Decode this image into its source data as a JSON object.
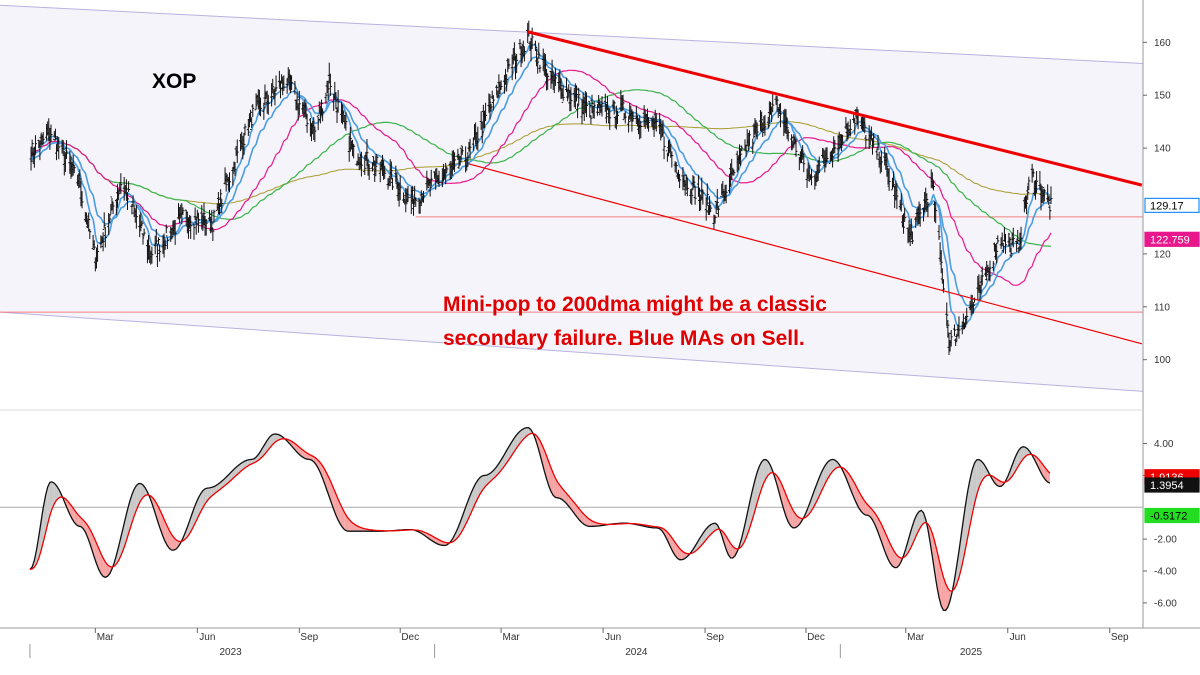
{
  "chart_data": [
    {
      "type": "candlestick",
      "ticker": "XOP",
      "annotation_lines": [
        "Mini-pop to 200dma might be a classic",
        "secondary failure. Blue MAs on Sell."
      ],
      "y_ticks": [
        100,
        110,
        120,
        140,
        150,
        160
      ],
      "ylim": [
        92,
        168
      ],
      "x_months": [
        {
          "label": "Mar",
          "date": "2023-03"
        },
        {
          "label": "Jun",
          "date": "2023-06"
        },
        {
          "label": "Sep",
          "date": "2023-09"
        },
        {
          "label": "Dec",
          "date": "2023-12"
        },
        {
          "label": "Mar",
          "date": "2024-03"
        },
        {
          "label": "Jun",
          "date": "2024-06"
        },
        {
          "label": "Sep",
          "date": "2024-09"
        },
        {
          "label": "Dec",
          "date": "2024-12"
        },
        {
          "label": "Mar",
          "date": "2025-03"
        },
        {
          "label": "Jun",
          "date": "2025-06"
        },
        {
          "label": "Sep",
          "date": "2025-09"
        }
      ],
      "x_years": [
        "2023",
        "2024",
        "2025"
      ],
      "price_path": [
        {
          "date": "2023-01-01",
          "value": 139
        },
        {
          "date": "2023-01-20",
          "value": 143
        },
        {
          "date": "2023-02-15",
          "value": 133
        },
        {
          "date": "2023-03-01",
          "value": 119
        },
        {
          "date": "2023-03-25",
          "value": 134
        },
        {
          "date": "2023-04-20",
          "value": 120
        },
        {
          "date": "2023-05-20",
          "value": 127
        },
        {
          "date": "2023-06-15",
          "value": 126
        },
        {
          "date": "2023-07-20",
          "value": 146
        },
        {
          "date": "2023-08-20",
          "value": 153
        },
        {
          "date": "2023-09-15",
          "value": 143
        },
        {
          "date": "2023-09-28",
          "value": 153
        },
        {
          "date": "2023-10-20",
          "value": 139
        },
        {
          "date": "2023-11-15",
          "value": 136
        },
        {
          "date": "2023-12-10",
          "value": 130
        },
        {
          "date": "2024-01-05",
          "value": 134
        },
        {
          "date": "2024-02-01",
          "value": 139
        },
        {
          "date": "2024-03-01",
          "value": 152
        },
        {
          "date": "2024-03-25",
          "value": 161
        },
        {
          "date": "2024-04-15",
          "value": 153
        },
        {
          "date": "2024-05-20",
          "value": 147
        },
        {
          "date": "2024-06-20",
          "value": 147
        },
        {
          "date": "2024-07-20",
          "value": 144
        },
        {
          "date": "2024-08-10",
          "value": 135
        },
        {
          "date": "2024-09-10",
          "value": 128
        },
        {
          "date": "2024-10-10",
          "value": 141
        },
        {
          "date": "2024-11-05",
          "value": 148
        },
        {
          "date": "2024-12-05",
          "value": 134
        },
        {
          "date": "2025-01-15",
          "value": 146
        },
        {
          "date": "2025-02-10",
          "value": 137
        },
        {
          "date": "2025-03-05",
          "value": 123
        },
        {
          "date": "2025-03-25",
          "value": 133
        },
        {
          "date": "2025-04-10",
          "value": 103
        },
        {
          "date": "2025-05-05",
          "value": 112
        },
        {
          "date": "2025-05-25",
          "value": 123
        },
        {
          "date": "2025-06-10",
          "value": 121
        },
        {
          "date": "2025-06-22",
          "value": 135
        },
        {
          "date": "2025-07-10",
          "value": 129
        }
      ],
      "horizontal_lines": [
        127,
        109
      ],
      "trendlines": [
        {
          "name": "downtrend",
          "color": "#ee0000",
          "from": {
            "date": "2024-03-25",
            "value": 162
          },
          "to": {
            "date": "2025-09-30",
            "value": 133
          }
        },
        {
          "name": "lower",
          "color": "#ee0000",
          "from": {
            "date": "2024-02-01",
            "value": 137
          },
          "to": {
            "date": "2025-09-30",
            "value": 103
          }
        }
      ],
      "channel": {
        "upper_from": 167,
        "upper_to": 156,
        "lower_from": 109,
        "lower_to": 94
      },
      "last_values": [
        {
          "label": "129.17",
          "value": 129.17,
          "bg": "#ffffff",
          "color": "#000000",
          "border": "#1e8fff"
        },
        {
          "label": "122.759",
          "value": 122.759,
          "bg": "#e8188c",
          "color": "#ffffff",
          "border": "#e8188c"
        }
      ]
    },
    {
      "type": "line",
      "name": "oscillator",
      "y_ticks": [
        4.0,
        2.0,
        -2.0,
        -4.0,
        -6.0
      ],
      "y_tick_labels": [
        "4.00",
        "2.00",
        "-2.00",
        "-4.00",
        "-6.00"
      ],
      "ylim": [
        -7.2,
        5.6
      ],
      "osc_path": [
        {
          "date": "2023-01-01",
          "value": -3.9
        },
        {
          "date": "2023-01-20",
          "value": 1.6
        },
        {
          "date": "2023-02-15",
          "value": -1.2
        },
        {
          "date": "2023-03-10",
          "value": -4.4
        },
        {
          "date": "2023-04-10",
          "value": 1.5
        },
        {
          "date": "2023-05-10",
          "value": -2.7
        },
        {
          "date": "2023-06-10",
          "value": 1.2
        },
        {
          "date": "2023-07-20",
          "value": 3.0
        },
        {
          "date": "2023-08-10",
          "value": 4.6
        },
        {
          "date": "2023-09-10",
          "value": 3.0
        },
        {
          "date": "2023-10-15",
          "value": -1.5
        },
        {
          "date": "2023-11-15",
          "value": -1.5
        },
        {
          "date": "2023-12-10",
          "value": -1.4
        },
        {
          "date": "2024-01-10",
          "value": -2.4
        },
        {
          "date": "2024-02-15",
          "value": 2.0
        },
        {
          "date": "2024-03-25",
          "value": 5.0
        },
        {
          "date": "2024-04-20",
          "value": 0.6
        },
        {
          "date": "2024-05-20",
          "value": -1.2
        },
        {
          "date": "2024-06-20",
          "value": -1.0
        },
        {
          "date": "2024-07-20",
          "value": -1.3
        },
        {
          "date": "2024-08-10",
          "value": -3.3
        },
        {
          "date": "2024-09-10",
          "value": -1.0
        },
        {
          "date": "2024-09-25",
          "value": -3.2
        },
        {
          "date": "2024-10-25",
          "value": 3.0
        },
        {
          "date": "2024-11-20",
          "value": -1.3
        },
        {
          "date": "2024-12-25",
          "value": 3.0
        },
        {
          "date": "2025-01-25",
          "value": -0.5
        },
        {
          "date": "2025-02-20",
          "value": -3.8
        },
        {
          "date": "2025-03-15",
          "value": -0.2
        },
        {
          "date": "2025-04-05",
          "value": -6.5
        },
        {
          "date": "2025-05-05",
          "value": 3.0
        },
        {
          "date": "2025-05-25",
          "value": 1.3
        },
        {
          "date": "2025-06-15",
          "value": 3.8
        },
        {
          "date": "2025-07-10",
          "value": 1.5
        }
      ],
      "last_values": [
        {
          "label": "1.9136",
          "value": 1.9136,
          "bg": "#ee0000",
          "color": "#ffffff",
          "border": "#ee0000"
        },
        {
          "label": "1.3954",
          "value": 1.3954,
          "bg": "#111111",
          "color": "#ffffff",
          "border": "#111111"
        },
        {
          "label": "-0.5172",
          "value": -0.5172,
          "bg": "#22dd22",
          "color": "#000000",
          "border": "#22dd22"
        }
      ]
    }
  ],
  "colors": {
    "price_bars": "#111111",
    "ma_blue": "#4a9de0",
    "ma_pink": "#e8188c",
    "ma_green": "#3cb34a",
    "ma_olive": "#a89a2a",
    "channel_fill": "#f5f4fb",
    "channel_line": "#b7b2e0",
    "downtrend": "#ee0000",
    "osc_fill": "#f5a3a3",
    "osc_black": "#111111",
    "osc_red": "#ee0000",
    "zero_line": "#aaaaaa"
  }
}
